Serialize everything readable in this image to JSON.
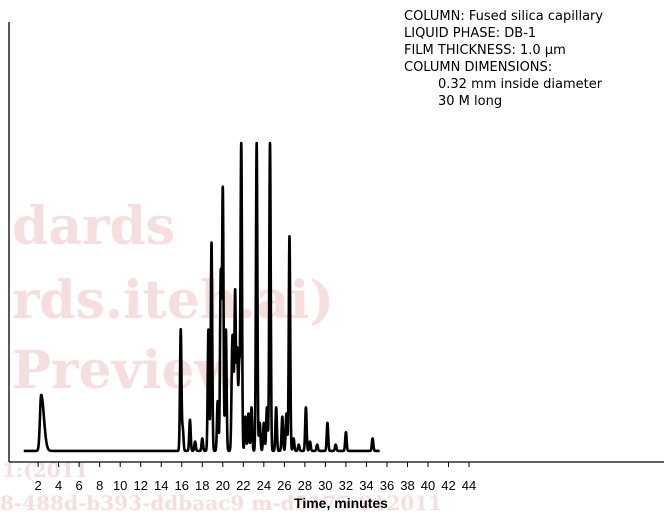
{
  "watermark": {
    "line1": "dards",
    "line2": "rds.iteh.ai)",
    "line3": "Preview",
    "line4": "1:(2011",
    "line5": "8-488d-b393-ddbaac9 m-d5175-912011"
  },
  "chart_data": {
    "type": "line",
    "title": "",
    "xlabel": "Time, minutes",
    "ylabel": "",
    "xlim": [
      0,
      44
    ],
    "xticks": [
      2,
      4,
      6,
      8,
      10,
      12,
      14,
      16,
      18,
      20,
      22,
      24,
      26,
      28,
      30,
      32,
      34,
      36,
      38,
      40,
      42,
      44
    ],
    "ylim": [
      0,
      100
    ],
    "grid": false,
    "annotations": [
      "COLUMN: Fused silica capillary",
      "LIQUID PHASE: DB-1",
      "FILM THICKNESS: 1.0 μm",
      "COLUMN DIMENSIONS:",
      "0.32 mm inside diameter",
      "30 M long"
    ],
    "baseline": 1,
    "trace_start": 0.6,
    "trace_end": 35.3,
    "peaks": [
      {
        "t": 2.3,
        "h": 19
      },
      {
        "t": 6.1,
        "h": 1
      },
      {
        "t": 15.9,
        "h": 40
      },
      {
        "t": 16.1,
        "h": 8
      },
      {
        "t": 16.8,
        "h": 11
      },
      {
        "t": 17.3,
        "h": 4
      },
      {
        "t": 18.0,
        "h": 5
      },
      {
        "t": 18.6,
        "h": 40
      },
      {
        "t": 18.9,
        "h": 68
      },
      {
        "t": 19.5,
        "h": 17
      },
      {
        "t": 19.8,
        "h": 58
      },
      {
        "t": 20.0,
        "h": 85
      },
      {
        "t": 20.3,
        "h": 40
      },
      {
        "t": 20.9,
        "h": 24
      },
      {
        "t": 21.0,
        "h": 26
      },
      {
        "t": 21.2,
        "h": 52
      },
      {
        "t": 21.4,
        "h": 33
      },
      {
        "t": 21.6,
        "h": 28
      },
      {
        "t": 21.8,
        "h": 100
      },
      {
        "t": 22.2,
        "h": 12
      },
      {
        "t": 22.5,
        "h": 13
      },
      {
        "t": 22.8,
        "h": 15
      },
      {
        "t": 23.3,
        "h": 100
      },
      {
        "t": 23.6,
        "h": 10
      },
      {
        "t": 24.0,
        "h": 10
      },
      {
        "t": 24.3,
        "h": 15
      },
      {
        "t": 24.6,
        "h": 100
      },
      {
        "t": 25.2,
        "h": 15
      },
      {
        "t": 25.8,
        "h": 12
      },
      {
        "t": 26.2,
        "h": 13
      },
      {
        "t": 26.5,
        "h": 70
      },
      {
        "t": 26.9,
        "h": 5
      },
      {
        "t": 27.4,
        "h": 3
      },
      {
        "t": 28.1,
        "h": 15
      },
      {
        "t": 28.5,
        "h": 4
      },
      {
        "t": 29.2,
        "h": 3
      },
      {
        "t": 30.2,
        "h": 10
      },
      {
        "t": 31.0,
        "h": 3
      },
      {
        "t": 32.0,
        "h": 7
      },
      {
        "t": 34.6,
        "h": 5
      }
    ]
  }
}
